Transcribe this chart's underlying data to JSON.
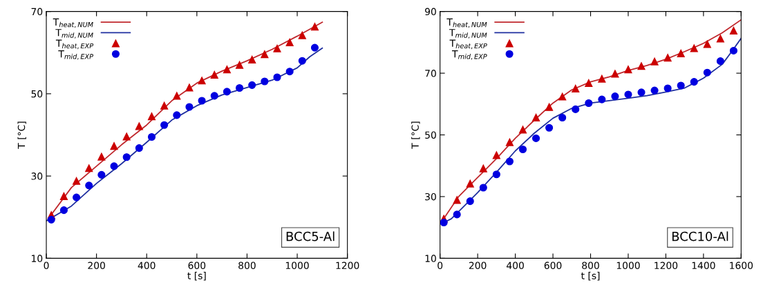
{
  "chart_data": [
    {
      "type": "line",
      "xlabel": "t [s]",
      "ylabel": "T [°C]",
      "xlim": [
        0,
        1200
      ],
      "xticks": [
        0,
        200,
        400,
        600,
        800,
        1000,
        1200
      ],
      "ylim": [
        10,
        70
      ],
      "yticks": [
        10,
        30,
        50,
        70
      ],
      "grid": false,
      "legend": "top left",
      "annotations": [
        "BCC5-Al"
      ],
      "series": [
        {
          "name": "T$_{heat,NUM}$",
          "color": "#c0282d",
          "marker": "none",
          "x": [
            15,
            100,
            200,
            300,
            400,
            500,
            600,
            700,
            800,
            900,
            1000,
            1100
          ],
          "values": [
            20.2,
            27.2,
            32.4,
            37.6,
            42.4,
            48.3,
            52.6,
            55.5,
            58.0,
            60.8,
            64.0,
            67.4
          ]
        },
        {
          "name": "T$_{mid,NUM}$",
          "color": "#1f2f9f",
          "marker": "none",
          "x": [
            0,
            100,
            200,
            300,
            400,
            500,
            600,
            700,
            800,
            900,
            1000,
            1050,
            1100
          ],
          "values": [
            19.1,
            22.7,
            28.2,
            33.0,
            38.2,
            43.6,
            47.1,
            49.7,
            51.5,
            53.3,
            56.3,
            59.0,
            61.1
          ]
        },
        {
          "name": "T$_{heat,EXP}$",
          "type": "scatter",
          "color": "#cc0000",
          "marker": "triangle",
          "x": [
            20,
            70,
            120,
            170,
            220,
            270,
            320,
            370,
            420,
            470,
            520,
            570,
            620,
            670,
            720,
            770,
            820,
            870,
            920,
            970,
            1020,
            1070
          ],
          "values": [
            20.5,
            25.1,
            28.8,
            31.9,
            34.7,
            37.3,
            39.6,
            42.1,
            44.5,
            47.1,
            49.5,
            51.5,
            53.2,
            54.6,
            55.9,
            57.0,
            58.3,
            59.6,
            61.0,
            62.5,
            64.2,
            66.3
          ]
        },
        {
          "name": "T$_{mid,EXP}$",
          "type": "scatter",
          "color": "#0000e0",
          "marker": "circle",
          "x": [
            20,
            70,
            120,
            170,
            220,
            270,
            320,
            370,
            420,
            470,
            520,
            570,
            620,
            670,
            720,
            770,
            820,
            870,
            920,
            970,
            1020,
            1070
          ],
          "values": [
            19.4,
            21.7,
            24.8,
            27.7,
            30.3,
            32.4,
            34.6,
            36.8,
            39.5,
            42.4,
            44.8,
            46.8,
            48.3,
            49.5,
            50.5,
            51.4,
            52.1,
            53.0,
            54.0,
            55.4,
            58.0,
            61.2
          ]
        }
      ]
    },
    {
      "type": "line",
      "xlabel": "t [s]",
      "ylabel": "T [°C]",
      "xlim": [
        0,
        1600
      ],
      "xticks": [
        0,
        200,
        400,
        600,
        800,
        1000,
        1200,
        1400,
        1600
      ],
      "ylim": [
        10,
        90
      ],
      "yticks": [
        10,
        30,
        50,
        70,
        90
      ],
      "grid": false,
      "legend": "top left",
      "annotations": [
        "BCC10-Al"
      ],
      "series": [
        {
          "name": "T$_{heat,NUM}$",
          "color": "#c0282d",
          "marker": "none",
          "x": [
            20,
            100,
            200,
            300,
            400,
            500,
            600,
            700,
            800,
            900,
            1000,
            1100,
            1200,
            1300,
            1400,
            1500,
            1600
          ],
          "values": [
            22.9,
            30.1,
            36.2,
            42.3,
            48.9,
            54.7,
            60.3,
            64.6,
            67.2,
            68.8,
            70.9,
            72.5,
            74.5,
            77.0,
            79.7,
            83.1,
            87.3
          ]
        },
        {
          "name": "T$_{mid,NUM}$",
          "color": "#1f2f9f",
          "marker": "none",
          "x": [
            20,
            60,
            100,
            200,
            300,
            400,
            500,
            600,
            700,
            800,
            900,
            1000,
            1100,
            1200,
            1300,
            1350,
            1400,
            1500,
            1550,
            1600
          ],
          "values": [
            21.6,
            22.8,
            25.2,
            31.3,
            37.9,
            44.8,
            50.5,
            55.4,
            58.6,
            60.3,
            61.1,
            61.9,
            62.7,
            63.9,
            65.2,
            66.8,
            68.4,
            72.9,
            77.0,
            81.3
          ]
        },
        {
          "name": "T$_{heat,EXP}$",
          "type": "scatter",
          "color": "#cc0000",
          "marker": "triangle",
          "x": [
            20,
            90,
            160,
            230,
            300,
            370,
            440,
            510,
            580,
            650,
            720,
            790,
            860,
            930,
            1000,
            1070,
            1140,
            1210,
            1280,
            1350,
            1420,
            1490,
            1560
          ],
          "values": [
            22.8,
            28.9,
            34.2,
            39.1,
            43.4,
            47.6,
            51.7,
            55.6,
            59.0,
            62.4,
            65.0,
            66.8,
            68.2,
            69.8,
            71.2,
            72.3,
            73.8,
            75.0,
            76.4,
            78.1,
            79.4,
            81.2,
            83.8
          ]
        },
        {
          "name": "T$_{mid,EXP}$",
          "type": "scatter",
          "color": "#0000e0",
          "marker": "circle",
          "x": [
            20,
            90,
            160,
            230,
            300,
            370,
            440,
            510,
            580,
            650,
            720,
            790,
            860,
            930,
            1000,
            1070,
            1140,
            1210,
            1280,
            1350,
            1420,
            1490,
            1560
          ],
          "values": [
            21.6,
            24.2,
            28.5,
            32.9,
            37.2,
            41.4,
            45.3,
            48.9,
            52.3,
            55.6,
            58.3,
            60.3,
            61.5,
            62.5,
            63.1,
            63.8,
            64.4,
            65.1,
            66.0,
            67.2,
            70.2,
            73.9,
            77.3
          ]
        }
      ]
    }
  ]
}
